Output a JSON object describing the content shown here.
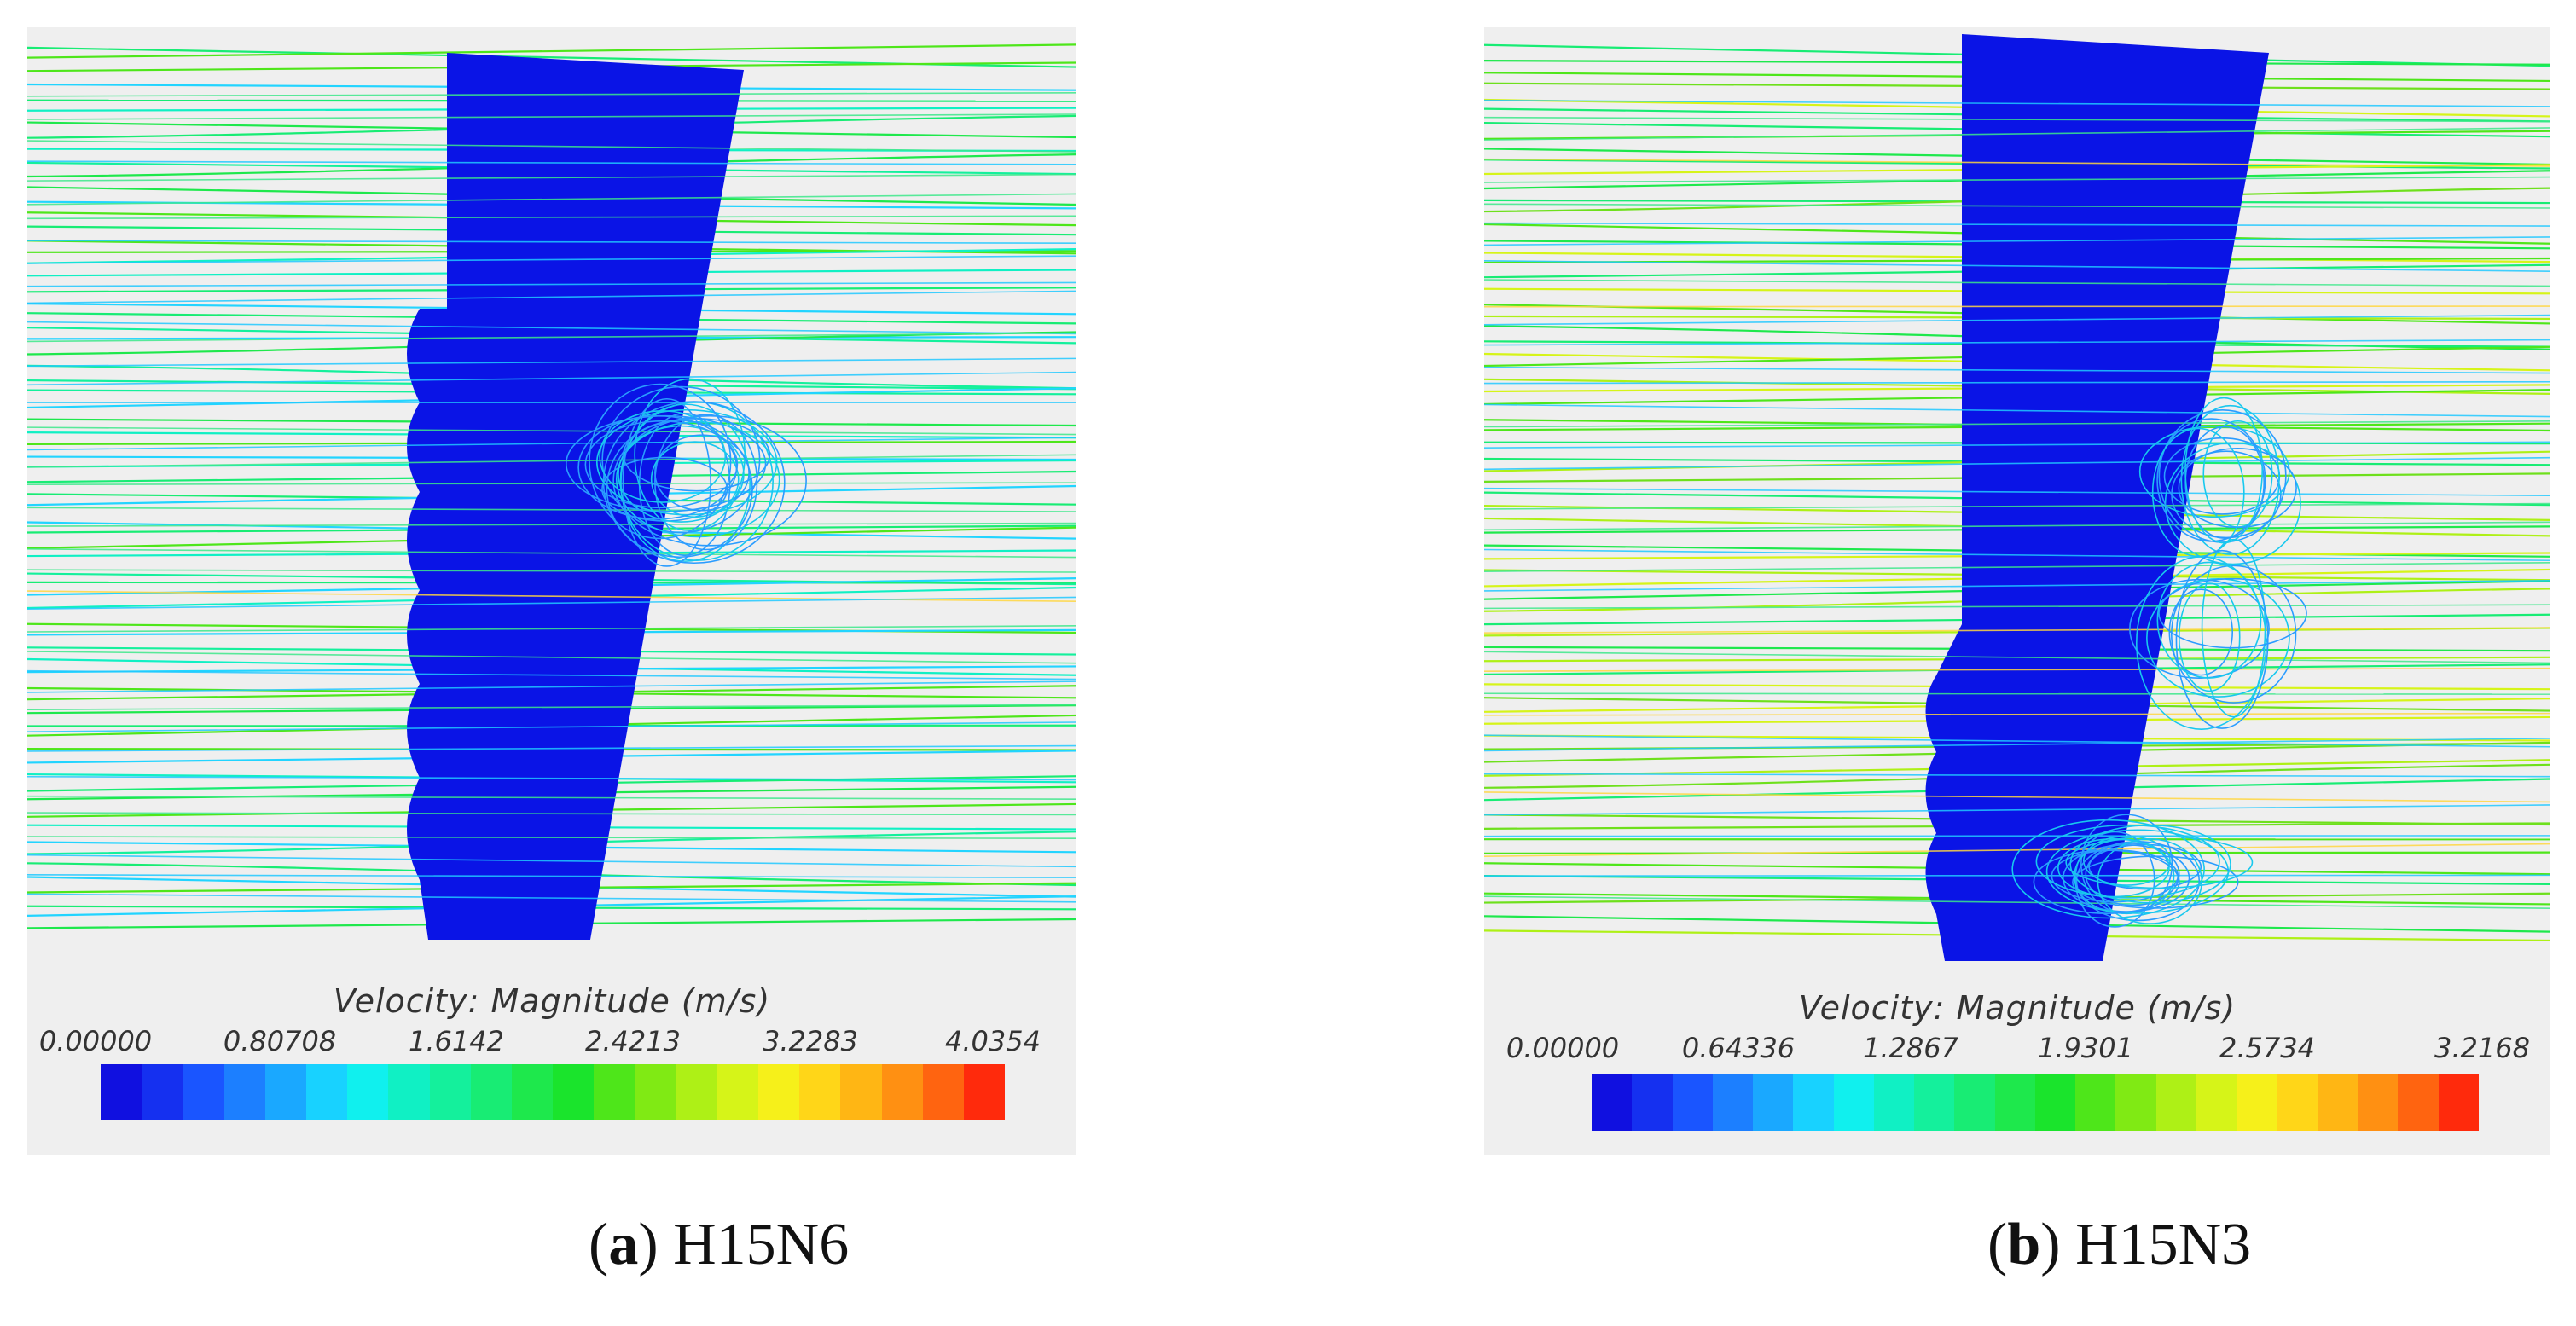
{
  "panels": [
    {
      "id": "a",
      "legend": {
        "title": "Velocity: Magnitude (m/s)",
        "ticks": [
          "0.00000",
          "0.80708",
          "1.6142",
          "2.4213",
          "3.2283",
          "4.0354"
        ],
        "min": 0.0,
        "max": 4.0354
      },
      "caption": {
        "letter": "a",
        "label": "H15N6"
      }
    },
    {
      "id": "b",
      "legend": {
        "title": "Velocity: Magnitude (m/s)",
        "ticks": [
          "0.00000",
          "0.64336",
          "1.2867",
          "1.9301",
          "2.5734",
          "3.2168"
        ],
        "min": 0.0,
        "max": 3.2168
      },
      "caption": {
        "letter": "b",
        "label": "H15N3"
      }
    }
  ],
  "colors": {
    "blade": "#0a14e6",
    "background": "#efefef",
    "colormap": [
      "#1010e0",
      "#1530f0",
      "#1a55ff",
      "#1c7fff",
      "#1aa8ff",
      "#18d2ff",
      "#10f0ee",
      "#10f0c4",
      "#14f09c",
      "#18ec74",
      "#1ee84c",
      "#1ae42c",
      "#4ee61a",
      "#80ea14",
      "#aef016",
      "#d6f418",
      "#f6f01a",
      "#ffd618",
      "#ffb614",
      "#ff9012",
      "#ff6410",
      "#ff2a0c"
    ]
  }
}
